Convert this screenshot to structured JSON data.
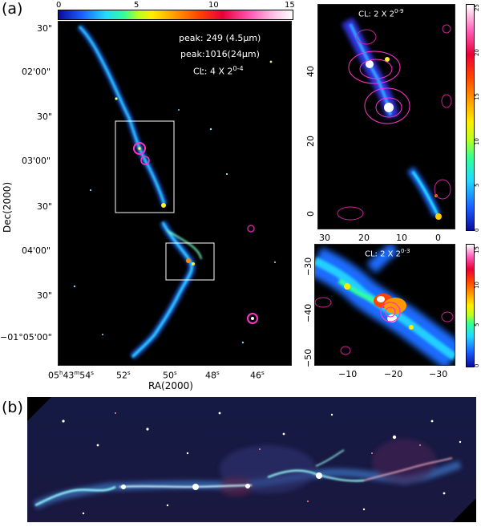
{
  "panel_a": {
    "letter": "(a)",
    "colorbar": {
      "ticks": [
        "0",
        "5",
        "10",
        "15"
      ]
    },
    "annotations": [
      "peak: 249 (4.5μm)",
      "peak:1016(24μm)",
      "CL: 4  X 2^{0-4}"
    ],
    "annot_1": "peak: 249 (4.5μm)",
    "annot_2": "peak:1016(24μm)",
    "annot_3_base": "CL: 4  X 2",
    "annot_3_sup": "0-4",
    "dec_label": "Dec(2000)",
    "ra_label": "RA(2000)",
    "dec_ticks": [
      "30\"",
      "02'00\"",
      "30\"",
      "03'00\"",
      "30\"",
      "04'00\"",
      "30\"",
      "−01°05'00\""
    ],
    "ra_ticks": {
      "first": "05h43m54s",
      "first_h": "05",
      "first_m": "43",
      "first_s": "54",
      "others": [
        "52s",
        "50s",
        "48s",
        "46s"
      ],
      "v52": "52",
      "v50": "50",
      "v48": "48",
      "v46": "46",
      "s": "s"
    }
  },
  "inset_top": {
    "cl_base": "CL: 2 X 2",
    "cl_sup": "0-9",
    "y_ticks": [
      "40",
      "20",
      "0"
    ],
    "x_ticks": [
      "30",
      "20",
      "10",
      "0"
    ],
    "colorbar_ticks": [
      "0",
      "5",
      "10",
      "15",
      "20",
      "25"
    ]
  },
  "inset_bottom": {
    "cl_base": "CL: 2 X 2",
    "cl_sup": "0-3",
    "y_ticks": [
      "−30",
      "−40",
      "−50"
    ],
    "x_ticks": [
      "−10",
      "−20",
      "−30"
    ],
    "colorbar_ticks": [
      "0",
      "5",
      "10",
      "15"
    ]
  },
  "panel_b": {
    "letter": "(b)"
  }
}
